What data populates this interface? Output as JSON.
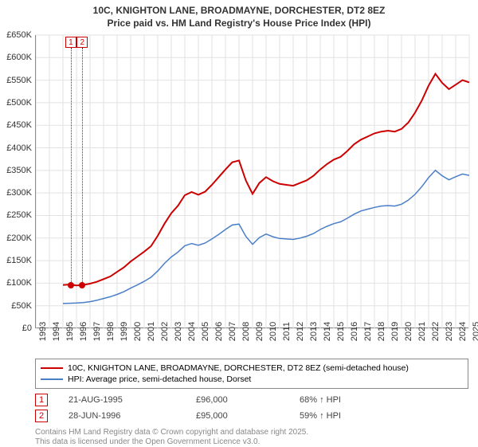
{
  "title_line1": "10C, KNIGHTON LANE, BROADMAYNE, DORCHESTER, DT2 8EZ",
  "title_line2": "Price paid vs. HM Land Registry's House Price Index (HPI)",
  "chart": {
    "type": "line",
    "background_color": "#ffffff",
    "grid_color": "#e2e2e2",
    "axis_color": "#333333",
    "ylim": [
      0,
      650000
    ],
    "ytick_step": 50000,
    "ytick_labels": [
      "£0",
      "£50K",
      "£100K",
      "£150K",
      "£200K",
      "£250K",
      "£300K",
      "£350K",
      "£400K",
      "£450K",
      "£500K",
      "£550K",
      "£600K",
      "£650K"
    ],
    "xlim": [
      1993,
      2025
    ],
    "xtick_labels": [
      "1993",
      "1994",
      "1995",
      "1996",
      "1997",
      "1998",
      "1999",
      "2000",
      "2001",
      "2002",
      "2003",
      "2004",
      "2005",
      "2006",
      "2007",
      "2008",
      "2009",
      "2010",
      "2011",
      "2012",
      "2013",
      "2014",
      "2015",
      "2016",
      "2017",
      "2018",
      "2019",
      "2020",
      "2021",
      "2022",
      "2023",
      "2024",
      "2025"
    ],
    "title_fontsize": 12,
    "label_fontsize": 11,
    "series": [
      {
        "name": "10C, KNIGHTON LANE, BROADMAYNE, DORCHESTER, DT2 8EZ (semi-detached house)",
        "color": "#cc0000",
        "line_width": 2,
        "data": [
          [
            1995,
            96000
          ],
          [
            1995.5,
            97000
          ],
          [
            1996,
            95000
          ],
          [
            1996.5,
            96000
          ],
          [
            1997,
            99000
          ],
          [
            1997.5,
            103000
          ],
          [
            1998,
            109000
          ],
          [
            1998.5,
            115000
          ],
          [
            1999,
            125000
          ],
          [
            1999.5,
            135000
          ],
          [
            2000,
            148000
          ],
          [
            2000.5,
            159000
          ],
          [
            2001,
            170000
          ],
          [
            2001.5,
            182000
          ],
          [
            2002,
            205000
          ],
          [
            2002.5,
            232000
          ],
          [
            2003,
            255000
          ],
          [
            2003.5,
            272000
          ],
          [
            2004,
            295000
          ],
          [
            2004.5,
            302000
          ],
          [
            2005,
            296000
          ],
          [
            2005.5,
            303000
          ],
          [
            2006,
            318000
          ],
          [
            2006.5,
            335000
          ],
          [
            2007,
            352000
          ],
          [
            2007.5,
            368000
          ],
          [
            2008,
            372000
          ],
          [
            2008.5,
            328000
          ],
          [
            2009,
            298000
          ],
          [
            2009.5,
            322000
          ],
          [
            2010,
            335000
          ],
          [
            2010.5,
            326000
          ],
          [
            2011,
            320000
          ],
          [
            2011.5,
            318000
          ],
          [
            2012,
            316000
          ],
          [
            2012.5,
            322000
          ],
          [
            2013,
            328000
          ],
          [
            2013.5,
            338000
          ],
          [
            2014,
            352000
          ],
          [
            2014.5,
            364000
          ],
          [
            2015,
            374000
          ],
          [
            2015.5,
            380000
          ],
          [
            2016,
            393000
          ],
          [
            2016.5,
            408000
          ],
          [
            2017,
            418000
          ],
          [
            2017.5,
            425000
          ],
          [
            2018,
            432000
          ],
          [
            2018.5,
            436000
          ],
          [
            2019,
            438000
          ],
          [
            2019.5,
            436000
          ],
          [
            2020,
            442000
          ],
          [
            2020.5,
            456000
          ],
          [
            2021,
            478000
          ],
          [
            2021.5,
            505000
          ],
          [
            2022,
            538000
          ],
          [
            2022.5,
            564000
          ],
          [
            2023,
            544000
          ],
          [
            2023.5,
            530000
          ],
          [
            2024,
            540000
          ],
          [
            2024.5,
            550000
          ],
          [
            2025,
            545000
          ]
        ]
      },
      {
        "name": "HPI: Average price, semi-detached house, Dorset",
        "color": "#4a7fc8",
        "line_width": 1.5,
        "data": [
          [
            1995,
            55000
          ],
          [
            1995.5,
            55500
          ],
          [
            1996,
            56000
          ],
          [
            1996.5,
            57000
          ],
          [
            1997,
            59000
          ],
          [
            1997.5,
            62000
          ],
          [
            1998,
            66000
          ],
          [
            1998.5,
            70000
          ],
          [
            1999,
            75000
          ],
          [
            1999.5,
            81000
          ],
          [
            2000,
            89000
          ],
          [
            2000.5,
            96000
          ],
          [
            2001,
            104000
          ],
          [
            2001.5,
            113000
          ],
          [
            2002,
            127000
          ],
          [
            2002.5,
            144000
          ],
          [
            2003,
            158000
          ],
          [
            2003.5,
            169000
          ],
          [
            2004,
            183000
          ],
          [
            2004.5,
            188000
          ],
          [
            2005,
            184000
          ],
          [
            2005.5,
            189000
          ],
          [
            2006,
            198000
          ],
          [
            2006.5,
            208000
          ],
          [
            2007,
            219000
          ],
          [
            2007.5,
            229000
          ],
          [
            2008,
            231000
          ],
          [
            2008.5,
            204000
          ],
          [
            2009,
            186000
          ],
          [
            2009.5,
            201000
          ],
          [
            2010,
            209000
          ],
          [
            2010.5,
            203000
          ],
          [
            2011,
            199000
          ],
          [
            2011.5,
            198000
          ],
          [
            2012,
            197000
          ],
          [
            2012.5,
            200000
          ],
          [
            2013,
            204000
          ],
          [
            2013.5,
            210000
          ],
          [
            2014,
            219000
          ],
          [
            2014.5,
            226000
          ],
          [
            2015,
            232000
          ],
          [
            2015.5,
            236000
          ],
          [
            2016,
            244000
          ],
          [
            2016.5,
            253000
          ],
          [
            2017,
            260000
          ],
          [
            2017.5,
            264000
          ],
          [
            2018,
            268000
          ],
          [
            2018.5,
            271000
          ],
          [
            2019,
            272000
          ],
          [
            2019.5,
            271000
          ],
          [
            2020,
            275000
          ],
          [
            2020.5,
            284000
          ],
          [
            2021,
            297000
          ],
          [
            2021.5,
            314000
          ],
          [
            2022,
            334000
          ],
          [
            2022.5,
            350000
          ],
          [
            2023,
            338000
          ],
          [
            2023.5,
            329000
          ],
          [
            2024,
            336000
          ],
          [
            2024.5,
            342000
          ],
          [
            2025,
            339000
          ]
        ]
      }
    ],
    "sale_markers": [
      {
        "label": "1",
        "x": 1995.64,
        "y": 96000,
        "dot_color": "#cc0000"
      },
      {
        "label": "2",
        "x": 1996.49,
        "y": 95000,
        "dot_color": "#cc0000"
      }
    ],
    "annotation_box_color": "#cc0000"
  },
  "legend": {
    "items": [
      {
        "label": "10C, KNIGHTON LANE, BROADMAYNE, DORCHESTER, DT2 8EZ (semi-detached house)",
        "color": "#cc0000",
        "thickness": 2
      },
      {
        "label": "HPI: Average price, semi-detached house, Dorset",
        "color": "#4a7fc8",
        "thickness": 1.5
      }
    ]
  },
  "sales": [
    {
      "marker": "1",
      "date": "21-AUG-1995",
      "price": "£96,000",
      "hpi": "68% ↑ HPI"
    },
    {
      "marker": "2",
      "date": "28-JUN-1996",
      "price": "£95,000",
      "hpi": "59% ↑ HPI"
    }
  ],
  "footer_line1": "Contains HM Land Registry data © Crown copyright and database right 2025.",
  "footer_line2": "This data is licensed under the Open Government Licence v3.0."
}
